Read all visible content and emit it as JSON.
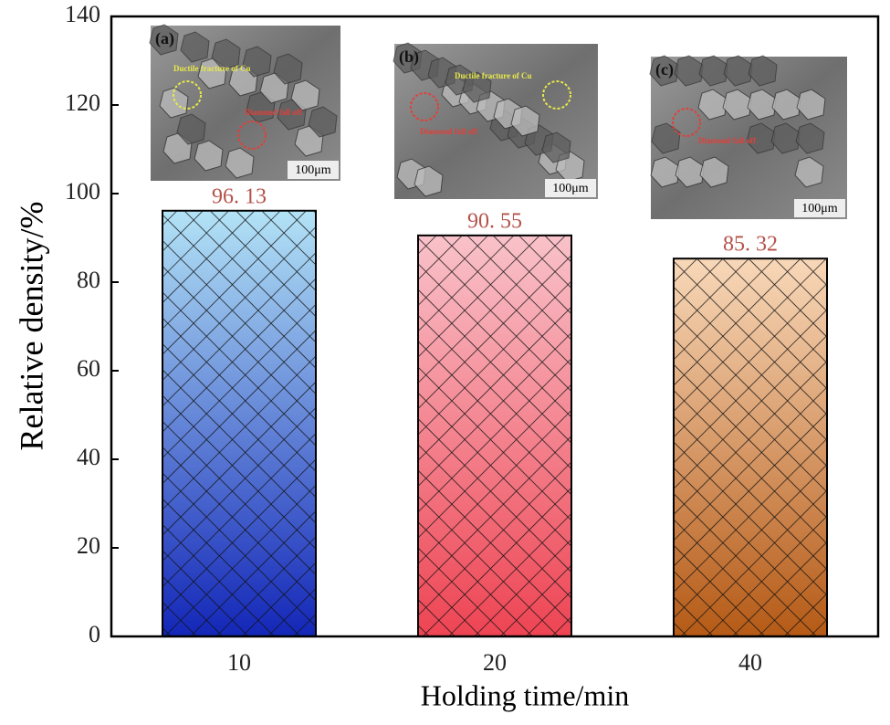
{
  "chart_data": {
    "type": "bar",
    "categories": [
      "10",
      "20",
      "40"
    ],
    "values": [
      96.13,
      90.55,
      85.32
    ],
    "value_labels": [
      "96. 13",
      "90. 55",
      "85. 32"
    ],
    "value_label_color": "#b5524a",
    "colors": [
      [
        "#b3e3f6",
        "#1326b8"
      ],
      [
        "#f9c2ca",
        "#ee4453"
      ],
      [
        "#f8d8b9",
        "#b55a16"
      ]
    ],
    "x_label": "Holding time/min",
    "y_label": "Relative density/%",
    "ylim": [
      0,
      140
    ],
    "yticks": [
      0,
      20,
      40,
      60,
      80,
      100,
      120,
      140
    ],
    "hatch": true,
    "insets": [
      {
        "label": "(a)",
        "notes": [
          {
            "text": "Ductile fracture of Cu",
            "color": "#e8e84a"
          },
          {
            "text": "Diamond fall off",
            "color": "#e0403a"
          }
        ],
        "scale": "100μm"
      },
      {
        "label": "(b)",
        "notes": [
          {
            "text": "Ductile fracture of Cu",
            "color": "#e8e84a"
          },
          {
            "text": "Diamond fall off",
            "color": "#e0403a"
          }
        ],
        "scale": "100μm"
      },
      {
        "label": "(c)",
        "notes": [
          {
            "text": "Diamond fall off",
            "color": "#e0403a"
          }
        ],
        "scale": "100μm"
      }
    ]
  }
}
